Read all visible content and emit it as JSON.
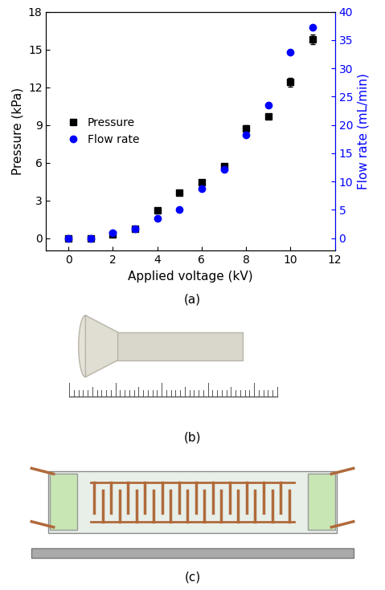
{
  "chart_data": {
    "type": "scatter",
    "x_label": "Applied voltage (kV)",
    "y_label": "Pressure (kPa)",
    "y2_label": "Flow rate (mL/min)",
    "xlim": [
      -1,
      12
    ],
    "xticks": [
      0,
      2,
      4,
      6,
      8,
      10,
      12
    ],
    "ylim": [
      -1,
      18
    ],
    "yticks": [
      0,
      3,
      6,
      9,
      12,
      15,
      18
    ],
    "y2lim": [
      -2.22,
      40
    ],
    "y2ticks": [
      0,
      5,
      10,
      15,
      20,
      25,
      30,
      35,
      40
    ],
    "legend": "center left",
    "grid": false,
    "series": [
      {
        "name": "Pressure",
        "color": "#000000",
        "marker": "square",
        "line_style": "none",
        "x": [
          0,
          1,
          2,
          3,
          4,
          5,
          6,
          7,
          8,
          9,
          10,
          11
        ],
        "values": [
          0,
          0,
          0.3,
          0.75,
          2.2,
          3.6,
          4.45,
          5.7,
          8.7,
          9.7,
          12.4,
          15.8
        ],
        "errors": [
          0.1,
          0.1,
          0.1,
          0.1,
          0.15,
          0.15,
          0.15,
          0.2,
          0.3,
          0.15,
          0.35,
          0.4
        ]
      },
      {
        "name": "Flow rate",
        "color": "#0000ff",
        "marker": "circle",
        "line_style": "none",
        "axis": "y2",
        "x": [
          0,
          1,
          2,
          3,
          4,
          5,
          6,
          7,
          8,
          9,
          10,
          11
        ],
        "values": [
          0,
          0,
          1.0,
          1.7,
          3.5,
          5.0,
          8.8,
          12.2,
          18.2,
          23.5,
          32.8,
          37.2
        ]
      }
    ]
  },
  "figure": {
    "captions": [
      "(a)",
      "(b)",
      "(c)"
    ]
  }
}
